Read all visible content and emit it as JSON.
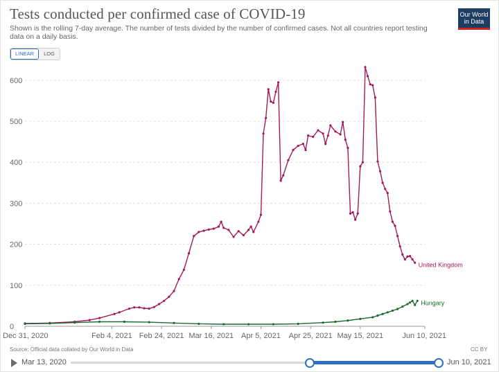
{
  "header": {
    "title": "Tests conducted per confirmed case of COVID-19",
    "subtitle": "Shown is the rolling 7-day average. The number of tests divided by the number of confirmed cases. Not all countries report testing data on a daily basis.",
    "logo_line1": "Our World",
    "logo_line2": "in Data"
  },
  "controls": {
    "linear_label": "LINEAR",
    "log_label": "LOG"
  },
  "footer": {
    "source": "Source: Official data collated by Our World in Data",
    "license": "CC BY"
  },
  "timeline": {
    "start_label": "Mar 13, 2020",
    "end_label": "Jun 10, 2021"
  },
  "colors": {
    "uk": "#a2195a",
    "hungary": "#1b6b2f",
    "grid": "#dcdcdc",
    "axis_text": "#666666"
  },
  "chart_data": {
    "type": "line",
    "title": "Tests conducted per confirmed case of COVID-19",
    "xlabel": "",
    "ylabel": "",
    "ylim": [
      0,
      620
    ],
    "yticks": [
      0,
      100,
      200,
      300,
      400,
      500,
      600
    ],
    "x_range_days": [
      0,
      161
    ],
    "xtick_labels": [
      {
        "day": 0,
        "label": "Dec 31, 2020"
      },
      {
        "day": 35,
        "label": "Feb 4, 2021"
      },
      {
        "day": 55,
        "label": "Feb 24, 2021"
      },
      {
        "day": 75,
        "label": "Mar 16, 2021"
      },
      {
        "day": 95,
        "label": "Apr 5, 2021"
      },
      {
        "day": 115,
        "label": "Apr 25, 2021"
      },
      {
        "day": 135,
        "label": "May 15, 2021"
      },
      {
        "day": 161,
        "label": "Jun 10, 2021"
      }
    ],
    "series": [
      {
        "name": "United Kingdom",
        "points": [
          [
            0,
            7
          ],
          [
            10,
            8
          ],
          [
            20,
            11
          ],
          [
            26,
            15
          ],
          [
            30,
            20
          ],
          [
            36,
            30
          ],
          [
            38,
            34
          ],
          [
            42,
            43
          ],
          [
            44,
            46
          ],
          [
            46,
            46
          ],
          [
            48,
            44
          ],
          [
            50,
            43
          ],
          [
            52,
            47
          ],
          [
            54,
            54
          ],
          [
            56,
            62
          ],
          [
            58,
            72
          ],
          [
            60,
            86
          ],
          [
            62,
            115
          ],
          [
            64,
            138
          ],
          [
            66,
            178
          ],
          [
            68,
            220
          ],
          [
            70,
            230
          ],
          [
            72,
            233
          ],
          [
            74,
            236
          ],
          [
            76,
            238
          ],
          [
            78,
            243
          ],
          [
            79,
            255
          ],
          [
            80,
            240
          ],
          [
            82,
            235
          ],
          [
            84,
            218
          ],
          [
            86,
            232
          ],
          [
            88,
            222
          ],
          [
            90,
            235
          ],
          [
            91,
            243
          ],
          [
            92,
            230
          ],
          [
            94,
            255
          ],
          [
            95,
            272
          ],
          [
            96,
            470
          ],
          [
            97,
            508
          ],
          [
            98,
            578
          ],
          [
            99,
            548
          ],
          [
            100,
            545
          ],
          [
            101,
            572
          ],
          [
            102,
            595
          ],
          [
            103,
            355
          ],
          [
            104,
            368
          ],
          [
            106,
            405
          ],
          [
            108,
            430
          ],
          [
            110,
            440
          ],
          [
            112,
            445
          ],
          [
            113,
            430
          ],
          [
            114,
            465
          ],
          [
            116,
            462
          ],
          [
            118,
            478
          ],
          [
            120,
            470
          ],
          [
            121,
            445
          ],
          [
            122,
            465
          ],
          [
            123,
            490
          ],
          [
            125,
            475
          ],
          [
            127,
            468
          ],
          [
            128,
            498
          ],
          [
            129,
            455
          ],
          [
            130,
            435
          ],
          [
            131,
            275
          ],
          [
            132,
            278
          ],
          [
            133,
            260
          ],
          [
            134,
            275
          ],
          [
            135,
            390
          ],
          [
            136,
            400
          ],
          [
            137,
            632
          ],
          [
            138,
            610
          ],
          [
            139,
            590
          ],
          [
            140,
            588
          ],
          [
            141,
            558
          ],
          [
            142,
            402
          ],
          [
            143,
            378
          ],
          [
            144,
            350
          ],
          [
            145,
            335
          ],
          [
            146,
            325
          ],
          [
            147,
            280
          ],
          [
            148,
            255
          ],
          [
            149,
            245
          ],
          [
            150,
            220
          ],
          [
            151,
            195
          ],
          [
            152,
            175
          ],
          [
            153,
            163
          ],
          [
            154,
            170
          ],
          [
            155,
            171
          ],
          [
            156,
            163
          ],
          [
            157,
            155
          ]
        ]
      },
      {
        "name": "Hungary",
        "points": [
          [
            0,
            6
          ],
          [
            10,
            7
          ],
          [
            20,
            9
          ],
          [
            30,
            11
          ],
          [
            40,
            11
          ],
          [
            50,
            10
          ],
          [
            60,
            8
          ],
          [
            70,
            6
          ],
          [
            80,
            5
          ],
          [
            90,
            5
          ],
          [
            100,
            5
          ],
          [
            110,
            6
          ],
          [
            120,
            9
          ],
          [
            125,
            11
          ],
          [
            130,
            14
          ],
          [
            135,
            18
          ],
          [
            140,
            22
          ],
          [
            142,
            26
          ],
          [
            144,
            30
          ],
          [
            146,
            34
          ],
          [
            148,
            38
          ],
          [
            150,
            42
          ],
          [
            152,
            48
          ],
          [
            154,
            54
          ],
          [
            155,
            58
          ],
          [
            156,
            62
          ],
          [
            157,
            52
          ],
          [
            158,
            62
          ]
        ]
      }
    ]
  }
}
